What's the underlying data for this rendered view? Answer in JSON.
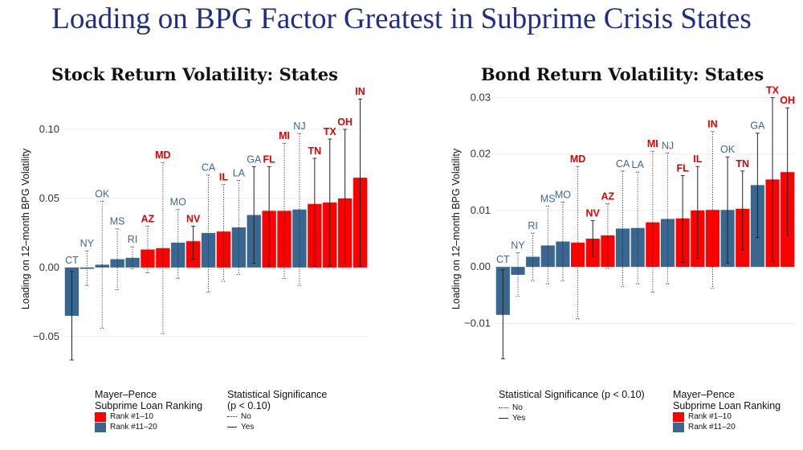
{
  "slide_title": "Loading on BPG Factor Greatest in Subprime Crisis States",
  "colors": {
    "rank_top10": "#ff0000",
    "rank_11_20": "#3a6790",
    "label_top10": "#e00000",
    "label_11_20": "#3a6790",
    "grid": "#ececec"
  },
  "legend": {
    "ranking_title_line1": "Mayer–Pence",
    "ranking_title_line2": "Subprime Loan Ranking",
    "rank_top10": "Rank #1–10",
    "rank_11_20": "Rank #11–20",
    "sig_title_line1": "Statistical Significance",
    "sig_title_line2": "(p < 0.10)",
    "sig_title_full": "Statistical Significance (p < 0.10)",
    "no": "No",
    "yes": "Yes"
  },
  "chart_data": [
    {
      "type": "bar",
      "title": "Stock Return Volatility: States",
      "ylabel": "Loading on 12–month BPG Volatility",
      "ylim": [
        -0.067,
        0.125
      ],
      "yticks": [
        -0.05,
        0.0,
        0.05,
        0.1
      ],
      "ytick_labels": [
        "−0.05",
        "0.00",
        "0.05",
        "0.10"
      ],
      "grid": true,
      "legend_position": "bottom",
      "categories": [
        "CT",
        "NY",
        "OK",
        "MS",
        "RI",
        "AZ",
        "MD",
        "MO",
        "NV",
        "CA",
        "IL",
        "LA",
        "GA",
        "FL",
        "MI",
        "NJ",
        "TN",
        "TX",
        "OH",
        "IN"
      ],
      "values": [
        -0.035,
        -0.001,
        0.002,
        0.006,
        0.007,
        0.013,
        0.014,
        0.018,
        0.019,
        0.025,
        0.026,
        0.029,
        0.038,
        0.041,
        0.041,
        0.042,
        0.046,
        0.047,
        0.05,
        0.065
      ],
      "ci_low": [
        -0.067,
        -0.013,
        -0.044,
        -0.016,
        -0.001,
        -0.004,
        -0.048,
        -0.008,
        0.006,
        -0.018,
        -0.01,
        -0.005,
        0.003,
        0.001,
        -0.008,
        -0.013,
        0.001,
        0.001,
        0.003,
        0.001
      ],
      "ci_high": [
        -0.003,
        0.012,
        0.048,
        0.028,
        0.015,
        0.03,
        0.076,
        0.042,
        0.03,
        0.067,
        0.06,
        0.063,
        0.073,
        0.073,
        0.09,
        0.097,
        0.079,
        0.093,
        0.1,
        0.122
      ],
      "significant": [
        true,
        false,
        false,
        false,
        false,
        false,
        false,
        false,
        true,
        false,
        false,
        false,
        true,
        true,
        false,
        false,
        true,
        true,
        true,
        true
      ],
      "rank_top10": [
        false,
        false,
        false,
        false,
        false,
        true,
        true,
        false,
        true,
        false,
        true,
        false,
        false,
        true,
        true,
        false,
        true,
        true,
        true,
        true
      ]
    },
    {
      "type": "bar",
      "title": "Bond Return Volatility: States",
      "ylabel": "Loading on 12–month BPG Volatility",
      "ylim": [
        -0.0165,
        0.0305
      ],
      "yticks": [
        -0.01,
        0.0,
        0.01,
        0.02,
        0.03
      ],
      "ytick_labels": [
        "−0.01",
        "0.00",
        "0.01",
        "0.02",
        "0.03"
      ],
      "grid": true,
      "legend_position": "bottom",
      "categories": [
        "CT",
        "NY",
        "RI",
        "MS",
        "MO",
        "MD",
        "NV",
        "AZ",
        "CA",
        "LA",
        "MI",
        "NJ",
        "FL",
        "IL",
        "IN",
        "OK",
        "TN",
        "GA",
        "TX",
        "OH"
      ],
      "values": [
        -0.0085,
        -0.0014,
        0.0018,
        0.0038,
        0.0045,
        0.0043,
        0.005,
        0.0056,
        0.0068,
        0.0069,
        0.0079,
        0.0085,
        0.0086,
        0.01,
        0.0101,
        0.0101,
        0.0103,
        0.0145,
        0.0155,
        0.0168
      ],
      "ci_low": [
        -0.0163,
        -0.0052,
        -0.0025,
        -0.003,
        -0.0025,
        -0.0092,
        0.0018,
        -0.0003,
        -0.0035,
        -0.003,
        -0.0045,
        -0.003,
        0.0008,
        0.0015,
        -0.0038,
        0.0007,
        0.003,
        0.0052,
        0.001,
        0.0055
      ],
      "ci_high": [
        -0.0005,
        0.0025,
        0.006,
        0.0108,
        0.0115,
        0.0178,
        0.0082,
        0.0112,
        0.017,
        0.0168,
        0.0205,
        0.0202,
        0.0162,
        0.0178,
        0.024,
        0.0195,
        0.017,
        0.0237,
        0.03,
        0.0282
      ],
      "significant": [
        true,
        false,
        false,
        false,
        false,
        false,
        true,
        false,
        false,
        false,
        false,
        false,
        true,
        true,
        false,
        true,
        true,
        true,
        true,
        true
      ],
      "rank_top10": [
        false,
        false,
        false,
        false,
        false,
        true,
        true,
        true,
        false,
        false,
        true,
        false,
        true,
        true,
        true,
        false,
        true,
        false,
        true,
        true
      ]
    }
  ]
}
